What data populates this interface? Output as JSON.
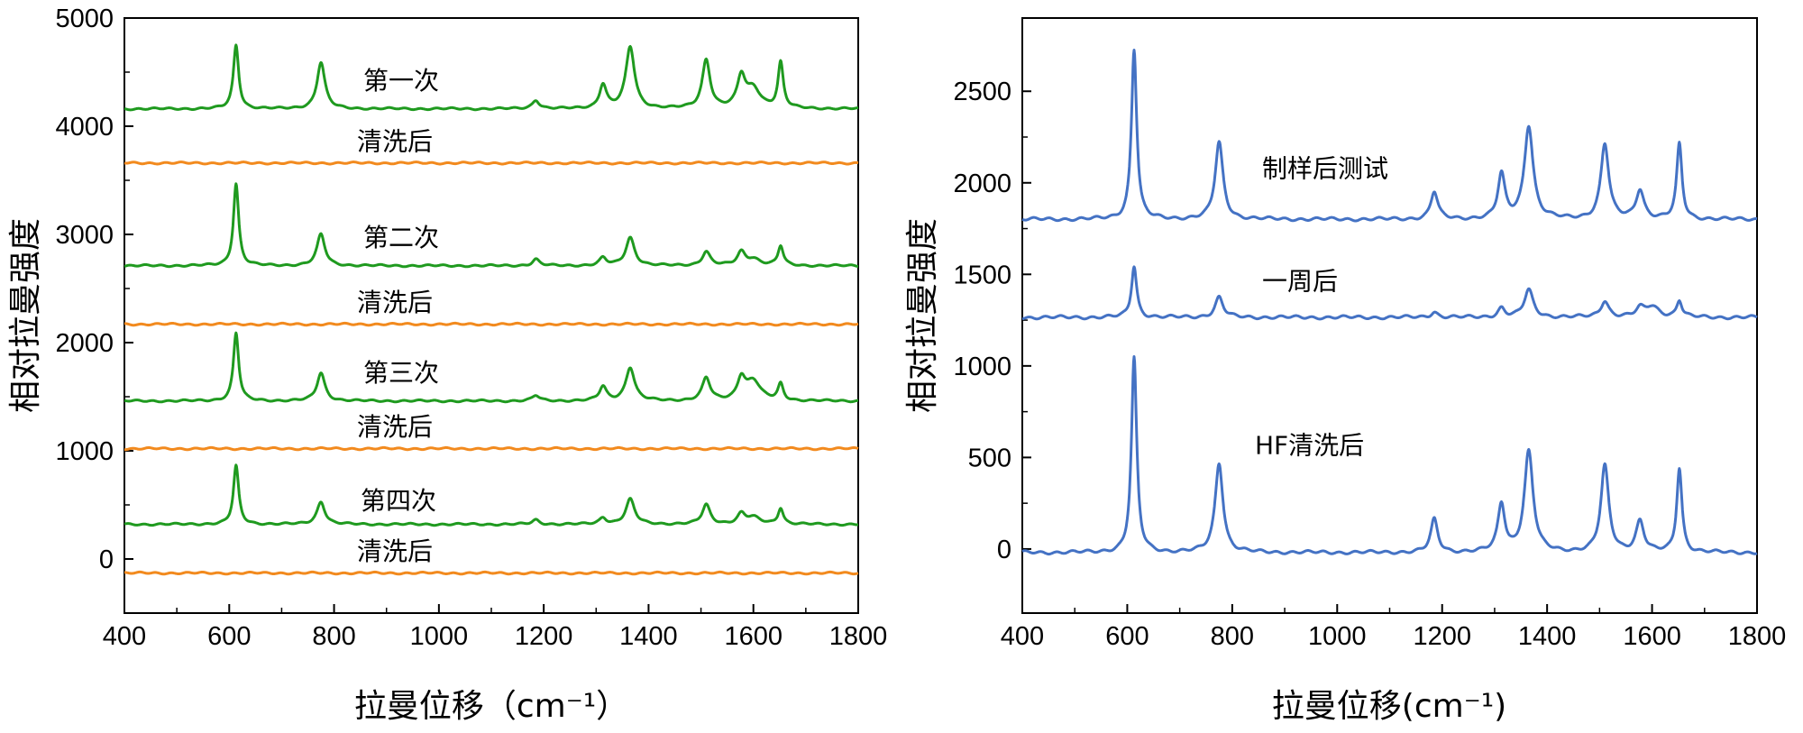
{
  "chart_data": [
    {
      "type": "line",
      "xlabel": "拉曼位移（cm⁻¹）",
      "ylabel": "相对拉曼强度",
      "xlim": [
        400,
        1800
      ],
      "ylim": [
        -500,
        5000
      ],
      "xticks": [
        "400",
        "600",
        "800",
        "1000",
        "1200",
        "1400",
        "1600",
        "1800"
      ],
      "yticks": [
        "0",
        "1000",
        "2000",
        "3000",
        "4000",
        "5000"
      ],
      "grid": false,
      "colors": {
        "measured": "#1f9a1f",
        "after_cleaning": "#f28a1e"
      },
      "peaks_cm-1": [
        613,
        775,
        1185,
        1313,
        1365,
        1510,
        1577,
        1600,
        1652
      ],
      "series": [
        {
          "name": "第一次",
          "color": "#1f9a1f",
          "baseline": 4160,
          "peak_heights": [
            590,
            430,
            80,
            220,
            570,
            450,
            280,
            180,
            420
          ]
        },
        {
          "name": "清洗后",
          "color": "#f28a1e",
          "baseline": 3660,
          "peak_heights": [
            0,
            0,
            0,
            0,
            0,
            0,
            0,
            0,
            0
          ]
        },
        {
          "name": "第二次",
          "color": "#1f9a1f",
          "baseline": 2710,
          "peak_heights": [
            760,
            290,
            60,
            70,
            260,
            130,
            120,
            60,
            180
          ]
        },
        {
          "name": "清洗后",
          "color": "#f28a1e",
          "baseline": 2170,
          "peak_heights": [
            0,
            0,
            0,
            0,
            0,
            0,
            0,
            0,
            0
          ]
        },
        {
          "name": "第三次",
          "color": "#1f9a1f",
          "baseline": 1460,
          "peak_heights": [
            630,
            260,
            50,
            130,
            310,
            210,
            200,
            180,
            150
          ]
        },
        {
          "name": "清洗后",
          "color": "#f28a1e",
          "baseline": 1020,
          "peak_heights": [
            0,
            0,
            0,
            0,
            0,
            0,
            0,
            0,
            0
          ]
        },
        {
          "name": "第四次",
          "color": "#1f9a1f",
          "baseline": 320,
          "peak_heights": [
            540,
            210,
            40,
            60,
            230,
            180,
            90,
            60,
            150
          ]
        },
        {
          "name": "清洗后",
          "color": "#f28a1e",
          "baseline": -130,
          "peak_heights": [
            0,
            0,
            0,
            0,
            0,
            0,
            0,
            0,
            0
          ]
        }
      ]
    },
    {
      "type": "line",
      "xlabel": "拉曼位移(cm⁻¹)",
      "ylabel": "相对拉曼强度",
      "xlim": [
        400,
        1800
      ],
      "ylim": [
        -350,
        2900
      ],
      "xticks": [
        "400",
        "600",
        "800",
        "1000",
        "1200",
        "1400",
        "1600",
        "1800"
      ],
      "yticks": [
        "0",
        "500",
        "1000",
        "1500",
        "2000",
        "2500"
      ],
      "grid": false,
      "color": "#4472c4",
      "peaks_cm-1": [
        613,
        775,
        1185,
        1313,
        1365,
        1510,
        1577,
        1600,
        1652
      ],
      "series": [
        {
          "name": "制样后测试",
          "baseline": 1800,
          "peak_heights": [
            930,
            420,
            150,
            240,
            510,
            410,
            160,
            0,
            410
          ]
        },
        {
          "name": "一周后",
          "baseline": 1265,
          "peak_heights": [
            280,
            110,
            30,
            50,
            150,
            90,
            40,
            60,
            90
          ]
        },
        {
          "name": "HF清洗后",
          "baseline": -20,
          "peak_heights": [
            1060,
            490,
            180,
            260,
            550,
            470,
            170,
            0,
            460
          ]
        }
      ]
    }
  ]
}
